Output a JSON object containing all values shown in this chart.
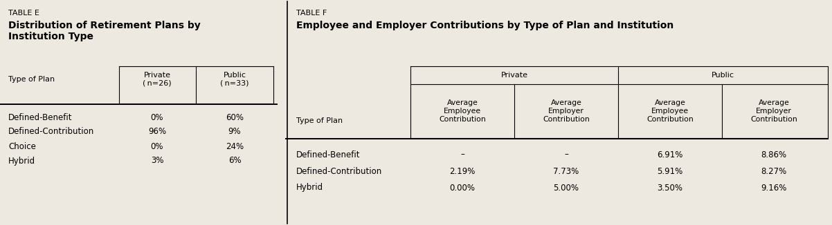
{
  "bg_color": "#ede8e0",
  "fig_w": 12.02,
  "fig_h": 3.26,
  "dpi": 100,
  "table_e": {
    "label": "TABLE E",
    "title_line1": "Distribution of Retirement Plans by",
    "title_line2": "Institution Type",
    "col_headers": [
      "Private\n(n=26)",
      "Public\n(n=33)"
    ],
    "row_label_header": "Type of Plan",
    "row_labels": [
      "Defined-Benefit",
      "Defined-Contribution",
      "Choice",
      "Hybrid"
    ],
    "data": [
      [
        "0%",
        "60%"
      ],
      [
        "96%",
        "9%"
      ],
      [
        "0%",
        "24%"
      ],
      [
        "3%",
        "6%"
      ]
    ]
  },
  "table_f": {
    "label": "TABLE F",
    "title": "Employee and Employer Contributions by Type of Plan and Institution",
    "group_headers": [
      "Private",
      "Public"
    ],
    "col_headers": [
      "Average\nEmployee\nContribution",
      "Average\nEmployer\nContribution",
      "Average\nEmployee\nContribution",
      "Average\nEmployer\nContribution"
    ],
    "row_label_header": "Type of Plan",
    "row_labels": [
      "Defined-Benefit",
      "Defined-Contribution",
      "Hybrid"
    ],
    "data": [
      [
        "–",
        "–",
        "6.91%",
        "8.86%"
      ],
      [
        "2.19%",
        "7.73%",
        "5.91%",
        "8.27%"
      ],
      [
        "0.00%",
        "5.00%",
        "3.50%",
        "9.16%"
      ]
    ]
  }
}
